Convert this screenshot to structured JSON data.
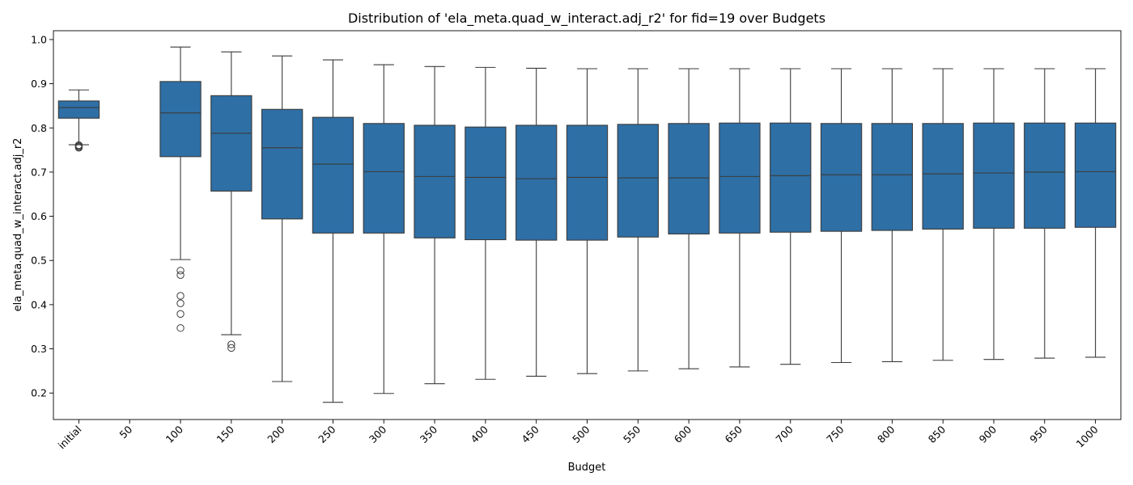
{
  "chart_data": {
    "type": "boxplot",
    "title": "Distribution of 'ela_meta.quad_w_interact.adj_r2' for fid=19 over Budgets",
    "xlabel": "Budget",
    "ylabel": "ela_meta.quad_w_interact.adj_r2",
    "ylim": [
      0.14,
      1.02
    ],
    "yticks": [
      "0.2",
      "0.3",
      "0.4",
      "0.5",
      "0.6",
      "0.7",
      "0.8",
      "0.9",
      "1.0"
    ],
    "grid": false,
    "box_color": "#2e6fa5",
    "line_color": "#3b3b3b",
    "categories": [
      "initial",
      "50",
      "100",
      "150",
      "200",
      "250",
      "300",
      "350",
      "400",
      "450",
      "500",
      "550",
      "600",
      "650",
      "700",
      "750",
      "800",
      "850",
      "900",
      "950",
      "1000"
    ],
    "boxes": [
      {
        "whisker_low": 0.762,
        "q1": 0.822,
        "median": 0.846,
        "q3": 0.861,
        "whisker_high": 0.886,
        "outliers": [
          0.755,
          0.757,
          0.759,
          0.761
        ]
      },
      null,
      {
        "whisker_low": 0.502,
        "q1": 0.735,
        "median": 0.834,
        "q3": 0.905,
        "whisker_high": 0.983,
        "outliers": [
          0.477,
          0.467,
          0.42,
          0.403,
          0.379,
          0.347
        ]
      },
      {
        "whisker_low": 0.332,
        "q1": 0.657,
        "median": 0.788,
        "q3": 0.873,
        "whisker_high": 0.972,
        "outliers": [
          0.31,
          0.302
        ]
      },
      {
        "whisker_low": 0.226,
        "q1": 0.594,
        "median": 0.755,
        "q3": 0.842,
        "whisker_high": 0.963,
        "outliers": []
      },
      {
        "whisker_low": 0.179,
        "q1": 0.562,
        "median": 0.718,
        "q3": 0.824,
        "whisker_high": 0.954,
        "outliers": []
      },
      {
        "whisker_low": 0.199,
        "q1": 0.562,
        "median": 0.701,
        "q3": 0.81,
        "whisker_high": 0.943,
        "outliers": []
      },
      {
        "whisker_low": 0.221,
        "q1": 0.551,
        "median": 0.69,
        "q3": 0.806,
        "whisker_high": 0.939,
        "outliers": []
      },
      {
        "whisker_low": 0.231,
        "q1": 0.547,
        "median": 0.688,
        "q3": 0.802,
        "whisker_high": 0.937,
        "outliers": []
      },
      {
        "whisker_low": 0.238,
        "q1": 0.546,
        "median": 0.685,
        "q3": 0.806,
        "whisker_high": 0.935,
        "outliers": []
      },
      {
        "whisker_low": 0.244,
        "q1": 0.546,
        "median": 0.688,
        "q3": 0.806,
        "whisker_high": 0.934,
        "outliers": []
      },
      {
        "whisker_low": 0.25,
        "q1": 0.553,
        "median": 0.687,
        "q3": 0.808,
        "whisker_high": 0.934,
        "outliers": []
      },
      {
        "whisker_low": 0.255,
        "q1": 0.56,
        "median": 0.687,
        "q3": 0.81,
        "whisker_high": 0.934,
        "outliers": []
      },
      {
        "whisker_low": 0.259,
        "q1": 0.562,
        "median": 0.69,
        "q3": 0.811,
        "whisker_high": 0.934,
        "outliers": []
      },
      {
        "whisker_low": 0.265,
        "q1": 0.564,
        "median": 0.692,
        "q3": 0.811,
        "whisker_high": 0.934,
        "outliers": []
      },
      {
        "whisker_low": 0.269,
        "q1": 0.566,
        "median": 0.694,
        "q3": 0.81,
        "whisker_high": 0.934,
        "outliers": []
      },
      {
        "whisker_low": 0.271,
        "q1": 0.568,
        "median": 0.694,
        "q3": 0.81,
        "whisker_high": 0.934,
        "outliers": []
      },
      {
        "whisker_low": 0.274,
        "q1": 0.571,
        "median": 0.696,
        "q3": 0.81,
        "whisker_high": 0.934,
        "outliers": []
      },
      {
        "whisker_low": 0.276,
        "q1": 0.573,
        "median": 0.698,
        "q3": 0.811,
        "whisker_high": 0.934,
        "outliers": []
      },
      {
        "whisker_low": 0.279,
        "q1": 0.573,
        "median": 0.7,
        "q3": 0.811,
        "whisker_high": 0.934,
        "outliers": []
      },
      {
        "whisker_low": 0.281,
        "q1": 0.575,
        "median": 0.701,
        "q3": 0.811,
        "whisker_high": 0.934,
        "outliers": []
      }
    ]
  }
}
